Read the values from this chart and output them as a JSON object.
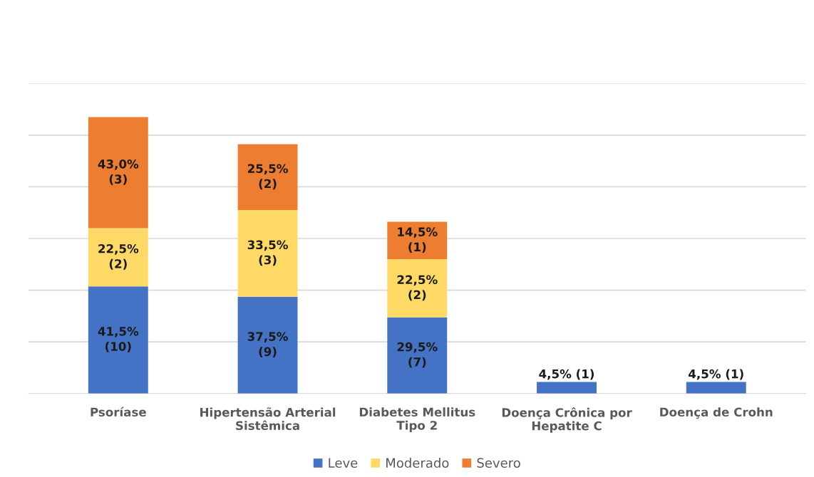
{
  "chart_data": {
    "type": "bar",
    "stacked": true,
    "categories": [
      "Psoríase",
      "Hipertensão Arterial\nSistêmica",
      "Diabetes Mellitus\nTipo 2",
      "Doença Crônica por\nHepatite C",
      "Doença de Crohn"
    ],
    "series": [
      {
        "name": "Leve",
        "color": "#4472c4",
        "values": [
          41.5,
          37.5,
          29.5,
          4.5,
          4.5
        ],
        "value_labels": [
          "41,5%\n(10)",
          "37,5%\n(9)",
          "29,5%\n(7)",
          "4,5% (1)",
          "4,5% (1)"
        ]
      },
      {
        "name": "Moderado",
        "color": "#ffd966",
        "values": [
          22.5,
          33.5,
          22.5,
          null,
          null
        ],
        "value_labels": [
          "22,5%\n(2)",
          "33,5%\n(3)",
          "22,5%\n(2)",
          null,
          null
        ]
      },
      {
        "name": "Severo",
        "color": "#ed7d31",
        "values": [
          43.0,
          25.5,
          14.5,
          null,
          null
        ],
        "value_labels": [
          "43,0%\n(3)",
          "25,5%\n(2)",
          "14,5%\n(1)",
          null,
          null
        ]
      }
    ],
    "ylim": [
      0,
      120
    ],
    "yticks": [
      {
        "value": 0,
        "label": null
      },
      {
        "value": 20,
        "label": null
      },
      {
        "value": 40,
        "label": null
      },
      {
        "value": 60,
        "label": null
      },
      {
        "value": 80,
        "label": null
      },
      {
        "value": 100,
        "label": null
      },
      {
        "value": 120,
        "label": null
      }
    ],
    "tick_labels": "x",
    "grid": "y",
    "legend": "bottom"
  }
}
